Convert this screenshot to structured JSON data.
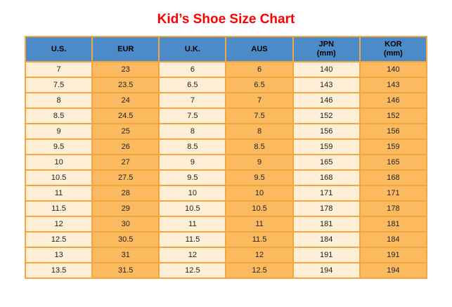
{
  "title": "Kid’s Shoe Size Chart",
  "colors": {
    "title_color": "#ff0000",
    "header_bg": "#4d8bc8",
    "col_light": "#fdeed5",
    "col_orange": "#fbba5f",
    "border": "#f2a63e",
    "text": "#222222"
  },
  "table": {
    "headers": [
      {
        "label": "U.S.",
        "sub": ""
      },
      {
        "label": "EUR",
        "sub": ""
      },
      {
        "label": "U.K.",
        "sub": ""
      },
      {
        "label": "AUS",
        "sub": ""
      },
      {
        "label": "JPN",
        "sub": "(mm)"
      },
      {
        "label": "KOR",
        "sub": "(mm)"
      }
    ],
    "rows": [
      [
        "7",
        "23",
        "6",
        "6",
        "140",
        "140"
      ],
      [
        "7.5",
        "23.5",
        "6.5",
        "6.5",
        "143",
        "143"
      ],
      [
        "8",
        "24",
        "7",
        "7",
        "146",
        "146"
      ],
      [
        "8.5",
        "24.5",
        "7.5",
        "7.5",
        "152",
        "152"
      ],
      [
        "9",
        "25",
        "8",
        "8",
        "156",
        "156"
      ],
      [
        "9.5",
        "26",
        "8.5",
        "8.5",
        "159",
        "159"
      ],
      [
        "10",
        "27",
        "9",
        "9",
        "165",
        "165"
      ],
      [
        "10.5",
        "27.5",
        "9.5",
        "9.5",
        "168",
        "168"
      ],
      [
        "11",
        "28",
        "10",
        "10",
        "171",
        "171"
      ],
      [
        "11.5",
        "29",
        "10.5",
        "10.5",
        "178",
        "178"
      ],
      [
        "12",
        "30",
        "11",
        "11",
        "181",
        "181"
      ],
      [
        "12.5",
        "30.5",
        "11.5",
        "11.5",
        "184",
        "184"
      ],
      [
        "13",
        "31",
        "12",
        "12",
        "191",
        "191"
      ],
      [
        "13.5",
        "31.5",
        "12.5",
        "12.5",
        "194",
        "194"
      ]
    ]
  },
  "chart_data": {
    "type": "table",
    "title": "Kid’s Shoe Size Chart",
    "columns": [
      "U.S.",
      "EUR",
      "U.K.",
      "AUS",
      "JPN (mm)",
      "KOR (mm)"
    ],
    "rows": [
      [
        "7",
        "23",
        "6",
        "6",
        "140",
        "140"
      ],
      [
        "7.5",
        "23.5",
        "6.5",
        "6.5",
        "143",
        "143"
      ],
      [
        "8",
        "24",
        "7",
        "7",
        "146",
        "146"
      ],
      [
        "8.5",
        "24.5",
        "7.5",
        "7.5",
        "152",
        "152"
      ],
      [
        "9",
        "25",
        "8",
        "8",
        "156",
        "156"
      ],
      [
        "9.5",
        "26",
        "8.5",
        "8.5",
        "159",
        "159"
      ],
      [
        "10",
        "27",
        "9",
        "9",
        "165",
        "165"
      ],
      [
        "10.5",
        "27.5",
        "9.5",
        "9.5",
        "168",
        "168"
      ],
      [
        "11",
        "28",
        "10",
        "10",
        "171",
        "171"
      ],
      [
        "11.5",
        "29",
        "10.5",
        "10.5",
        "178",
        "178"
      ],
      [
        "12",
        "30",
        "11",
        "11",
        "181",
        "181"
      ],
      [
        "12.5",
        "30.5",
        "11.5",
        "11.5",
        "184",
        "184"
      ],
      [
        "13",
        "31",
        "12",
        "12",
        "191",
        "191"
      ],
      [
        "13.5",
        "31.5",
        "12.5",
        "12.5",
        "194",
        "194"
      ]
    ],
    "layout": {
      "header_style": "blue background, bold black text",
      "column_banding": "odd columns cream (#fdeed5), even columns orange (#fbba5f)",
      "grid": "on, orange borders"
    }
  }
}
